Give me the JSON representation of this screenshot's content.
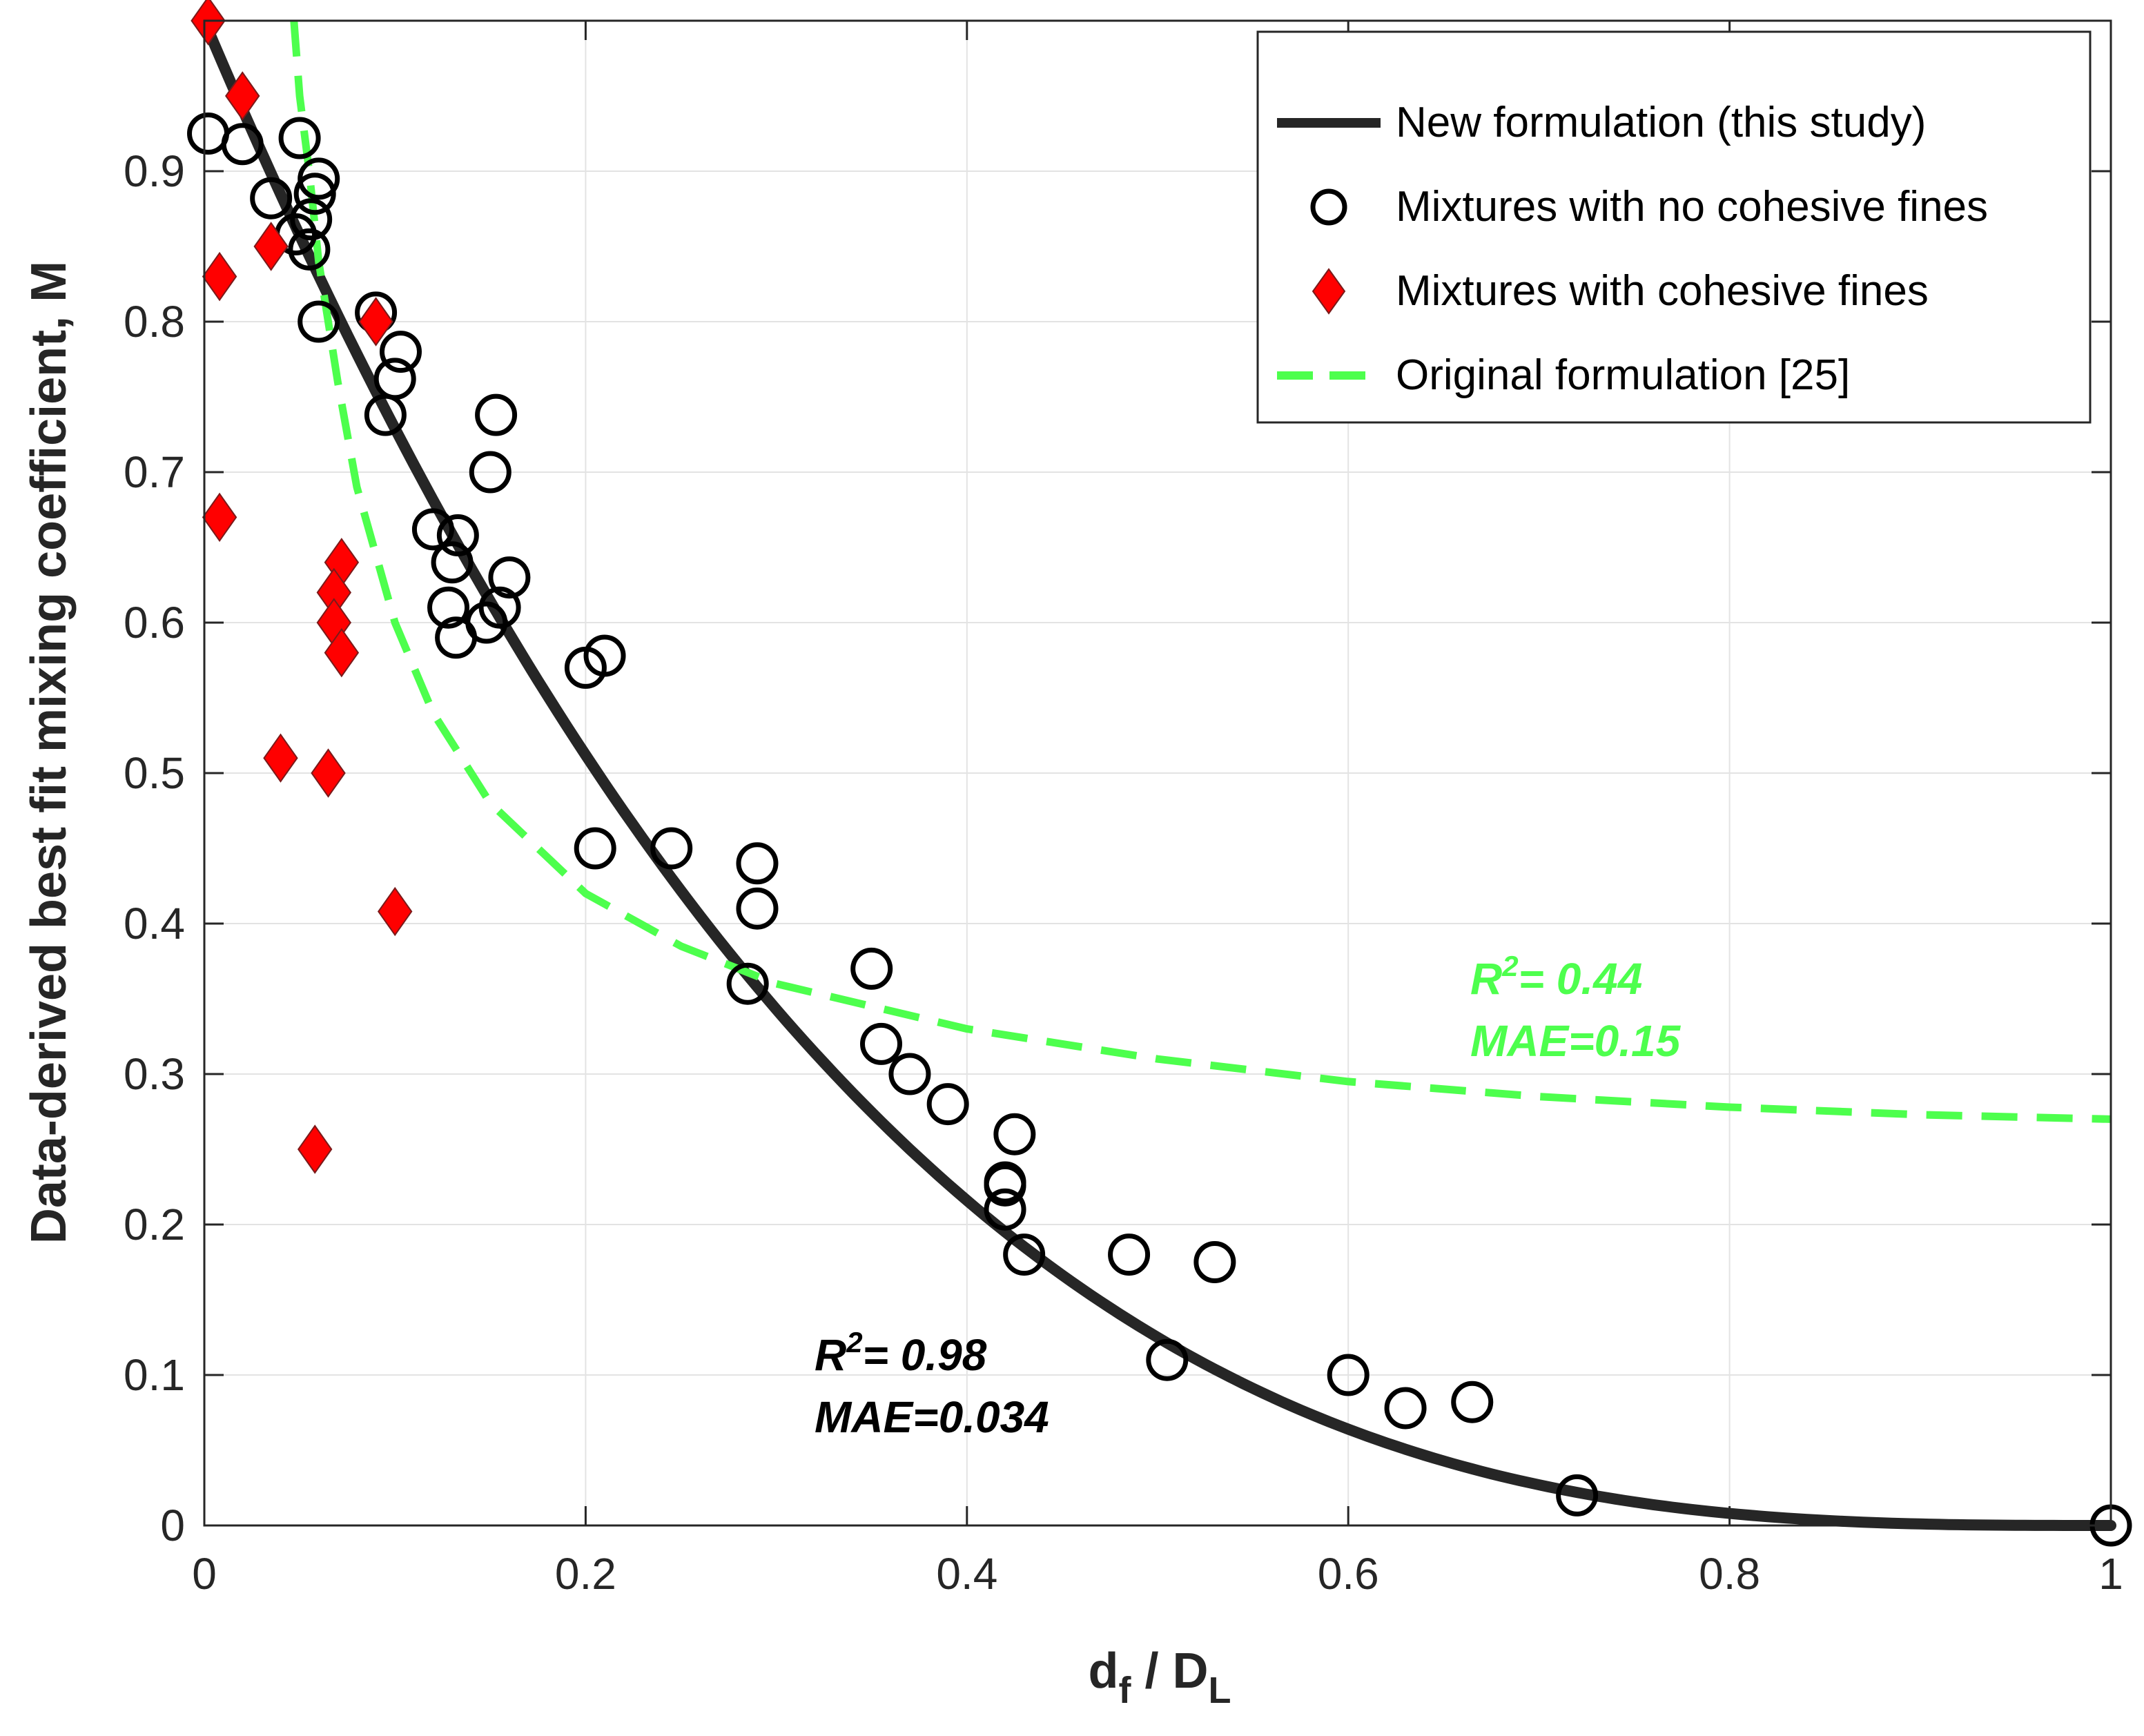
{
  "chart_data": {
    "type": "scatter",
    "xlabel": {
      "main": "d",
      "sub1": "f",
      "sep": " / D",
      "sub2": "L"
    },
    "ylabel": "Data-derived best fit mixing coefficient, M",
    "xlim": [
      0,
      1
    ],
    "ylim": [
      0,
      1
    ],
    "xticks": [
      0,
      0.2,
      0.4,
      0.6,
      0.8,
      1
    ],
    "xtick_labels": [
      "0",
      "0.2",
      "0.4",
      "0.6",
      "0.8",
      "1"
    ],
    "yticks": [
      0,
      0.1,
      0.2,
      0.3,
      0.4,
      0.5,
      0.6,
      0.7,
      0.8,
      0.9
    ],
    "ytick_labels": [
      "0",
      "0.1",
      "0.2",
      "0.3",
      "0.4",
      "0.5",
      "0.6",
      "0.7",
      "0.8",
      "0.9"
    ],
    "grid": true,
    "legend": {
      "position": "top-right",
      "entries": [
        {
          "label": "New formulation (this study)",
          "marker": "line",
          "color": "#262626"
        },
        {
          "label": "Mixtures with no cohesive fines",
          "marker": "circle",
          "color": "#000000"
        },
        {
          "label": "Mixtures with cohesive fines",
          "marker": "diamond",
          "color": "#ff0000"
        },
        {
          "label": "Original formulation [25]",
          "marker": "dashed-line",
          "color": "#4dff4d"
        }
      ]
    },
    "series": [
      {
        "name": "New formulation (this study)",
        "kind": "curve",
        "color": "#262626",
        "x": [
          0,
          0.02,
          0.04,
          0.06,
          0.08,
          0.1,
          0.15,
          0.2,
          0.25,
          0.3,
          0.35,
          0.4,
          0.45,
          0.5,
          0.55,
          0.6,
          0.65,
          0.7,
          0.75,
          0.8,
          0.85,
          0.9,
          0.95,
          1.0
        ],
        "y": [
          1.0,
          0.941,
          0.885,
          0.831,
          0.779,
          0.729,
          0.614,
          0.512,
          0.422,
          0.343,
          0.275,
          0.216,
          0.166,
          0.125,
          0.091,
          0.064,
          0.043,
          0.027,
          0.016,
          0.008,
          0.003,
          0.001,
          0.0001,
          0.0
        ]
      },
      {
        "name": "Original formulation [25]",
        "kind": "curve",
        "color": "#4dff4d",
        "x": [
          0.047,
          0.05,
          0.055,
          0.06,
          0.07,
          0.08,
          0.1,
          0.12,
          0.15,
          0.2,
          0.25,
          0.3,
          0.35,
          0.4,
          0.5,
          0.6,
          0.7,
          0.8,
          0.9,
          1.0
        ],
        "y": [
          1.0,
          0.95,
          0.9,
          0.84,
          0.76,
          0.69,
          0.6,
          0.54,
          0.48,
          0.42,
          0.385,
          0.36,
          0.345,
          0.33,
          0.31,
          0.295,
          0.285,
          0.278,
          0.273,
          0.27
        ]
      },
      {
        "name": "Mixtures with no cohesive fines",
        "kind": "scatter",
        "marker": "circle",
        "color": "#000000",
        "x": [
          0.002,
          0.02,
          0.035,
          0.05,
          0.048,
          0.055,
          0.06,
          0.058,
          0.056,
          0.06,
          0.09,
          0.103,
          0.1,
          0.095,
          0.12,
          0.13,
          0.133,
          0.128,
          0.132,
          0.15,
          0.153,
          0.155,
          0.16,
          0.148,
          0.2,
          0.21,
          0.205,
          0.245,
          0.29,
          0.29,
          0.285,
          0.35,
          0.355,
          0.37,
          0.39,
          0.42,
          0.42,
          0.42,
          0.425,
          0.43,
          0.485,
          0.505,
          0.53,
          0.6,
          0.63,
          0.665,
          0.72,
          1.0
        ],
        "y": [
          0.925,
          0.918,
          0.882,
          0.922,
          0.858,
          0.848,
          0.895,
          0.885,
          0.868,
          0.8,
          0.806,
          0.78,
          0.762,
          0.738,
          0.662,
          0.64,
          0.658,
          0.61,
          0.59,
          0.7,
          0.738,
          0.61,
          0.63,
          0.6,
          0.57,
          0.578,
          0.45,
          0.45,
          0.44,
          0.41,
          0.36,
          0.37,
          0.32,
          0.3,
          0.28,
          0.226,
          0.21,
          0.228,
          0.26,
          0.18,
          0.18,
          0.11,
          0.175,
          0.1,
          0.078,
          0.082,
          0.02,
          0.0
        ]
      },
      {
        "name": "Mixtures with cohesive fines",
        "kind": "scatter",
        "marker": "diamond",
        "color": "#ff0000",
        "x": [
          0.002,
          0.02,
          0.008,
          0.035,
          0.008,
          0.09,
          0.072,
          0.068,
          0.068,
          0.072,
          0.04,
          0.065,
          0.1,
          0.058
        ],
        "y": [
          1.0,
          0.95,
          0.83,
          0.85,
          0.67,
          0.8,
          0.64,
          0.62,
          0.6,
          0.58,
          0.51,
          0.5,
          0.408,
          0.25
        ]
      }
    ],
    "annotations": [
      {
        "id": "original",
        "r2_prefix": "R",
        "r2_sup": "2",
        "r2_rest": "= 0.44",
        "mae": "MAE=0.15",
        "color": "#4dff4d",
        "anchor_x": 0.665,
        "anchor_y": 0.375
      },
      {
        "id": "new",
        "r2_prefix": "R",
        "r2_sup": "2",
        "r2_rest": "= 0.98",
        "mae": "MAE=0.034",
        "color": "#000000",
        "anchor_x": 0.32,
        "anchor_y": 0.115
      }
    ]
  }
}
